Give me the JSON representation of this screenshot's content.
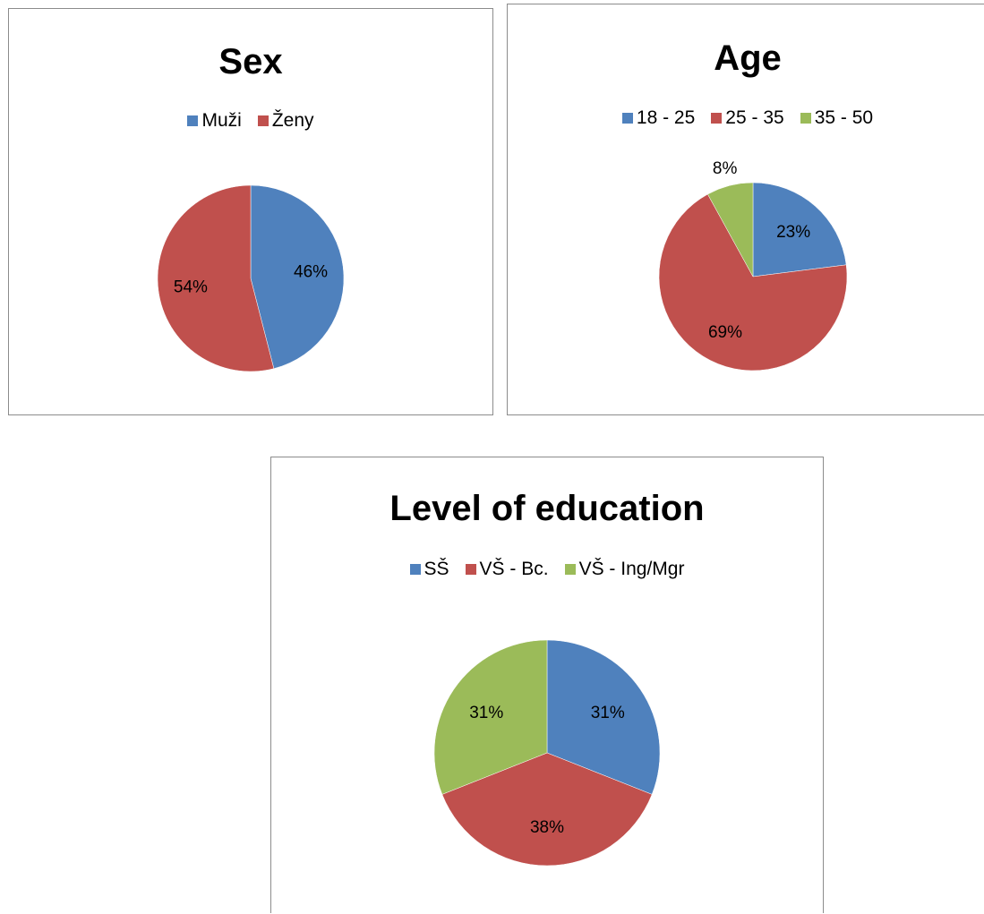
{
  "chart_data": [
    {
      "type": "pie",
      "title": "Sex",
      "categories": [
        "Muži",
        "Ženy"
      ],
      "values": [
        46,
        54
      ],
      "labels": [
        "46%",
        "54%"
      ],
      "colors": [
        "#4f81bd",
        "#c0504d"
      ],
      "legend_position": "top"
    },
    {
      "type": "pie",
      "title": "Age",
      "categories": [
        "18 - 25",
        "25 - 35",
        "35 - 50"
      ],
      "values": [
        23,
        69,
        8
      ],
      "labels": [
        "23%",
        "69%",
        "8%"
      ],
      "colors": [
        "#4f81bd",
        "#c0504d",
        "#9bbb59"
      ],
      "legend_position": "top"
    },
    {
      "type": "pie",
      "title": "Level of education",
      "categories": [
        "SŠ",
        "VŠ - Bc.",
        "VŠ - Ing/Mgr"
      ],
      "values": [
        31,
        38,
        31
      ],
      "labels": [
        "31%",
        "38%",
        "31%"
      ],
      "colors": [
        "#4f81bd",
        "#c0504d",
        "#9bbb59"
      ],
      "legend_position": "top"
    }
  ]
}
